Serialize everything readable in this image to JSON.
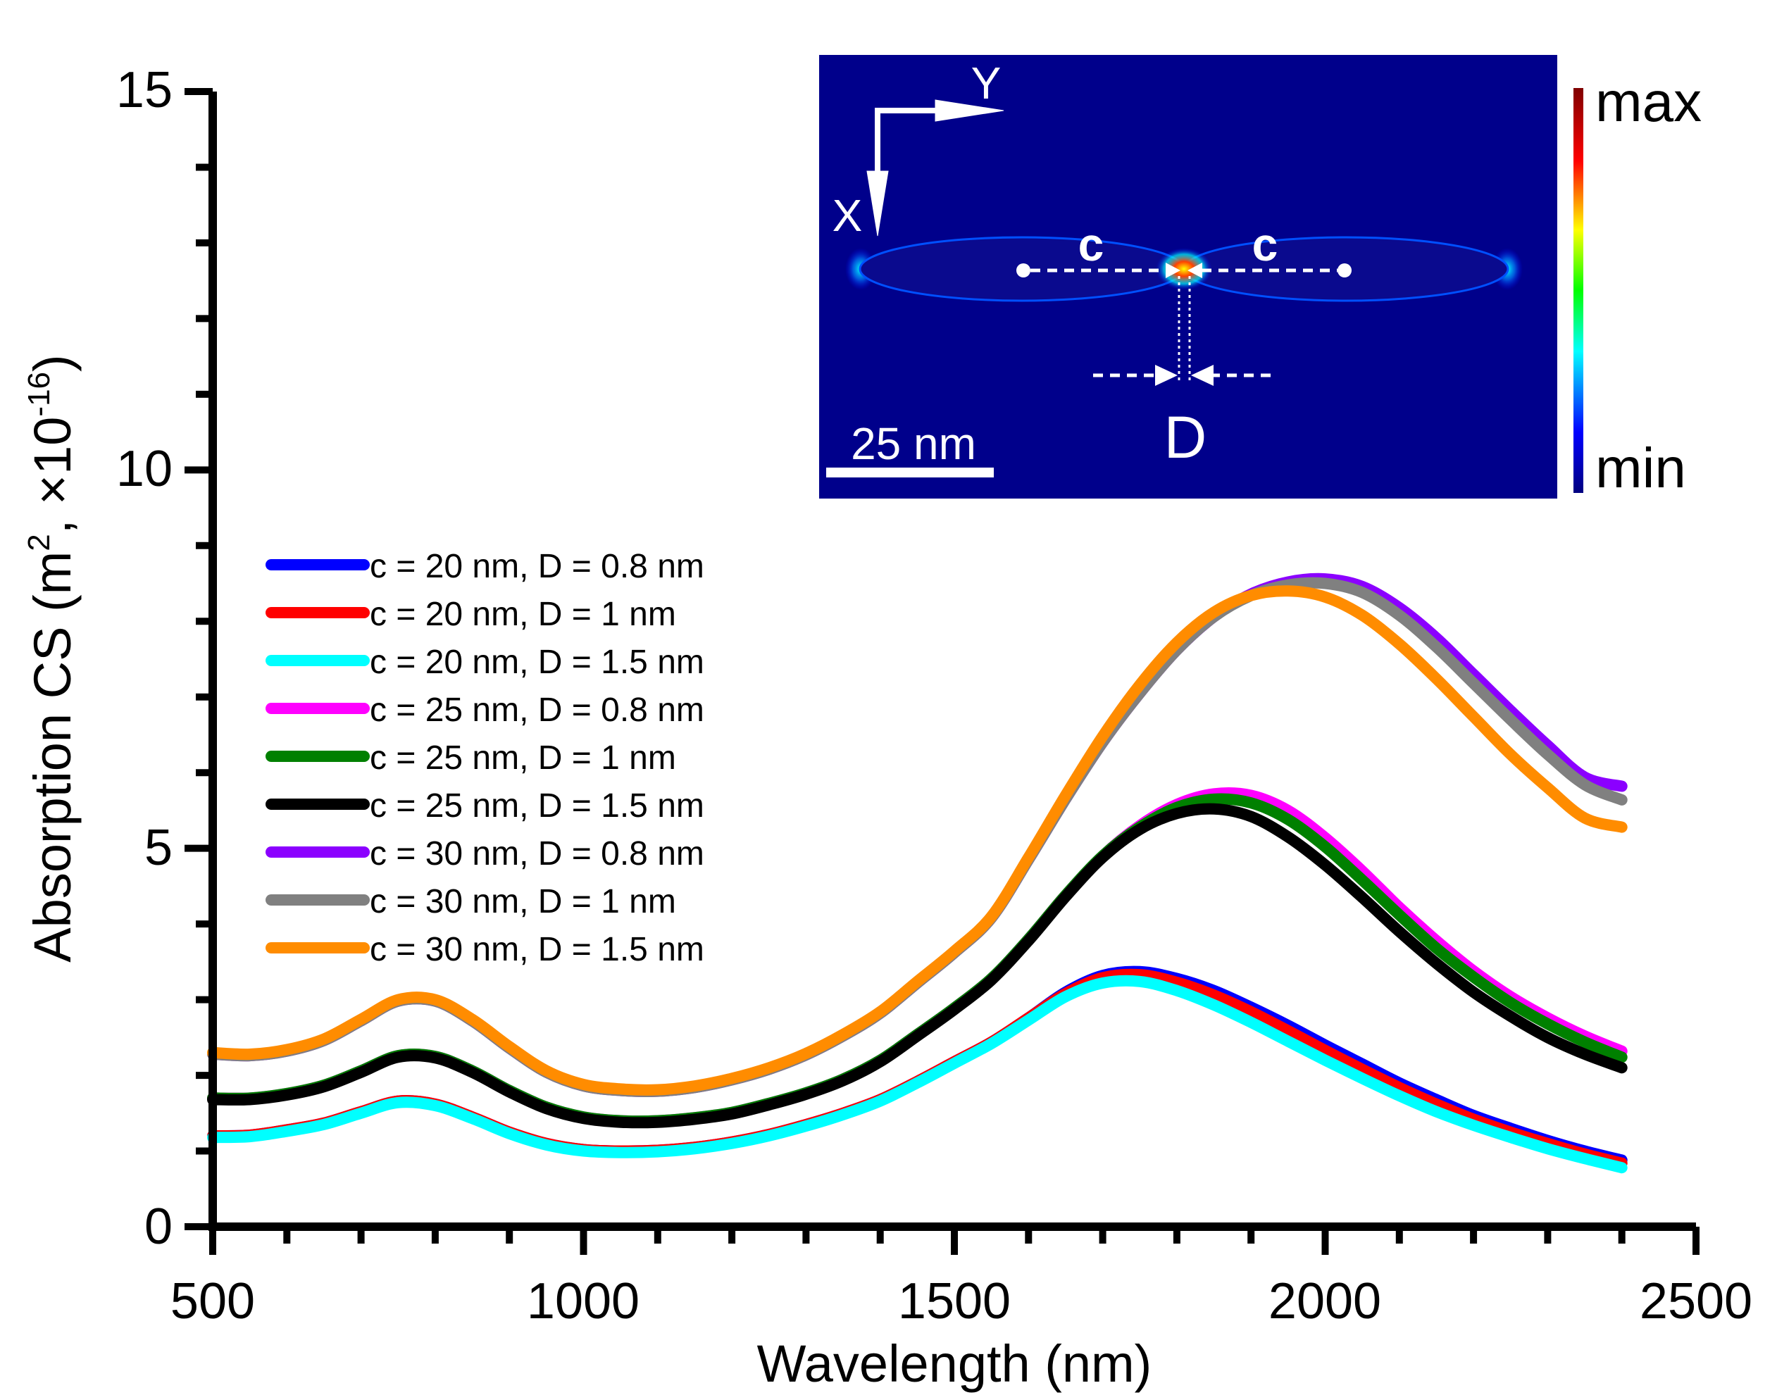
{
  "chart_data": {
    "type": "line",
    "title": "",
    "xlabel": "Wavelength (nm)",
    "ylabel": {
      "prefix": "Absorption CS (m",
      "sup1": "2",
      "mid": ", ×10",
      "sup2": "-16",
      "suffix": ")"
    },
    "xlim": [
      500,
      2500
    ],
    "ylim": [
      0,
      15
    ],
    "xticks": [
      500,
      1000,
      1500,
      2000,
      2500
    ],
    "xtick_labels": [
      "500",
      "1000",
      "1500",
      "2000",
      "2500"
    ],
    "yticks": [
      0,
      5,
      10,
      15
    ],
    "ytick_labels": [
      "0",
      "5",
      "10",
      "15"
    ],
    "grid": false,
    "legend_position": "center-left",
    "x": [
      500,
      550,
      600,
      650,
      700,
      750,
      800,
      850,
      900,
      950,
      1000,
      1050,
      1100,
      1150,
      1200,
      1250,
      1300,
      1350,
      1400,
      1450,
      1500,
      1550,
      1600,
      1650,
      1700,
      1750,
      1800,
      1850,
      1900,
      1950,
      2000,
      2050,
      2100,
      2150,
      2200,
      2250,
      2300,
      2350,
      2400
    ],
    "series": [
      {
        "name": "c = 20 nm, D = 0.8 nm",
        "color": "#0000ff",
        "values": [
          1.2,
          1.21,
          1.28,
          1.37,
          1.52,
          1.66,
          1.62,
          1.45,
          1.25,
          1.1,
          1.02,
          1.0,
          1.01,
          1.05,
          1.12,
          1.22,
          1.35,
          1.5,
          1.68,
          1.92,
          2.18,
          2.44,
          2.76,
          3.1,
          3.32,
          3.37,
          3.28,
          3.12,
          2.9,
          2.66,
          2.4,
          2.15,
          1.9,
          1.68,
          1.47,
          1.3,
          1.14,
          1.0,
          0.88
        ]
      },
      {
        "name": "c = 20 nm, D = 1 nm",
        "color": "#ff0000",
        "values": [
          1.2,
          1.21,
          1.28,
          1.37,
          1.52,
          1.66,
          1.62,
          1.45,
          1.25,
          1.1,
          1.02,
          1.0,
          1.01,
          1.05,
          1.12,
          1.22,
          1.35,
          1.5,
          1.68,
          1.92,
          2.18,
          2.44,
          2.76,
          3.08,
          3.29,
          3.33,
          3.23,
          3.06,
          2.84,
          2.59,
          2.33,
          2.08,
          1.84,
          1.62,
          1.42,
          1.25,
          1.1,
          0.96,
          0.84
        ]
      },
      {
        "name": "c = 20 nm, D = 1.5 nm",
        "color": "#00ffff",
        "values": [
          1.18,
          1.19,
          1.26,
          1.35,
          1.5,
          1.64,
          1.6,
          1.43,
          1.23,
          1.08,
          1.0,
          0.98,
          0.99,
          1.03,
          1.1,
          1.2,
          1.33,
          1.48,
          1.66,
          1.9,
          2.16,
          2.42,
          2.73,
          3.04,
          3.22,
          3.24,
          3.12,
          2.93,
          2.7,
          2.45,
          2.2,
          1.96,
          1.73,
          1.52,
          1.34,
          1.18,
          1.03,
          0.9,
          0.78
        ]
      },
      {
        "name": "c = 25 nm, D = 0.8 nm",
        "color": "#ff00ff",
        "values": [
          1.7,
          1.7,
          1.76,
          1.87,
          2.06,
          2.26,
          2.25,
          2.06,
          1.8,
          1.58,
          1.45,
          1.4,
          1.4,
          1.44,
          1.51,
          1.63,
          1.77,
          1.95,
          2.2,
          2.54,
          2.89,
          3.28,
          3.8,
          4.38,
          4.9,
          5.3,
          5.58,
          5.72,
          5.7,
          5.5,
          5.14,
          4.7,
          4.22,
          3.78,
          3.38,
          3.04,
          2.76,
          2.52,
          2.32
        ]
      },
      {
        "name": "c = 25 nm, D = 1 nm",
        "color": "#008000",
        "values": [
          1.7,
          1.7,
          1.76,
          1.87,
          2.06,
          2.26,
          2.25,
          2.06,
          1.8,
          1.58,
          1.45,
          1.4,
          1.4,
          1.44,
          1.51,
          1.63,
          1.77,
          1.95,
          2.2,
          2.54,
          2.89,
          3.28,
          3.8,
          4.38,
          4.9,
          5.28,
          5.54,
          5.65,
          5.6,
          5.38,
          5.02,
          4.58,
          4.12,
          3.68,
          3.3,
          2.96,
          2.68,
          2.44,
          2.24
        ]
      },
      {
        "name": "c = 25 nm, D = 1.5 nm",
        "color": "#000000",
        "values": [
          1.68,
          1.68,
          1.74,
          1.85,
          2.04,
          2.24,
          2.23,
          2.04,
          1.78,
          1.56,
          1.43,
          1.38,
          1.38,
          1.42,
          1.49,
          1.61,
          1.75,
          1.93,
          2.18,
          2.52,
          2.87,
          3.26,
          3.78,
          4.36,
          4.88,
          5.25,
          5.46,
          5.52,
          5.42,
          5.15,
          4.78,
          4.35,
          3.9,
          3.48,
          3.1,
          2.78,
          2.5,
          2.28,
          2.1
        ]
      },
      {
        "name": "c = 30 nm, D = 0.8 nm",
        "color": "#8b00ff",
        "values": [
          2.28,
          2.26,
          2.32,
          2.46,
          2.72,
          2.98,
          2.98,
          2.72,
          2.36,
          2.04,
          1.86,
          1.8,
          1.79,
          1.84,
          1.94,
          2.08,
          2.27,
          2.52,
          2.82,
          3.22,
          3.62,
          4.08,
          4.85,
          5.65,
          6.4,
          7.05,
          7.62,
          8.06,
          8.36,
          8.52,
          8.56,
          8.46,
          8.18,
          7.78,
          7.3,
          6.82,
          6.36,
          5.94,
          5.82
        ]
      },
      {
        "name": "c = 30 nm, D = 1 nm",
        "color": "#808080",
        "values": [
          2.28,
          2.26,
          2.32,
          2.46,
          2.72,
          2.98,
          2.98,
          2.72,
          2.36,
          2.04,
          1.86,
          1.8,
          1.79,
          1.84,
          1.94,
          2.08,
          2.27,
          2.52,
          2.82,
          3.22,
          3.62,
          4.08,
          4.85,
          5.65,
          6.4,
          7.05,
          7.62,
          8.06,
          8.34,
          8.48,
          8.5,
          8.38,
          8.08,
          7.66,
          7.18,
          6.7,
          6.24,
          5.84,
          5.64
        ]
      },
      {
        "name": "c = 30 nm, D = 1.5 nm",
        "color": "#ff8c00",
        "values": [
          2.3,
          2.28,
          2.34,
          2.48,
          2.74,
          3.0,
          3.0,
          2.74,
          2.38,
          2.06,
          1.88,
          1.82,
          1.81,
          1.86,
          1.96,
          2.1,
          2.29,
          2.54,
          2.84,
          3.24,
          3.64,
          4.1,
          4.88,
          5.7,
          6.48,
          7.16,
          7.72,
          8.12,
          8.34,
          8.4,
          8.32,
          8.08,
          7.7,
          7.24,
          6.74,
          6.24,
          5.8,
          5.4,
          5.28
        ]
      }
    ]
  },
  "inset": {
    "axis_y": "Y",
    "axis_x": "X",
    "label_c_left": "c",
    "label_c_right": "c",
    "label_d": "D",
    "scale_bar": "25 nm",
    "colorbar_max": "max",
    "colorbar_min": "min",
    "background_color": "#00008b"
  }
}
